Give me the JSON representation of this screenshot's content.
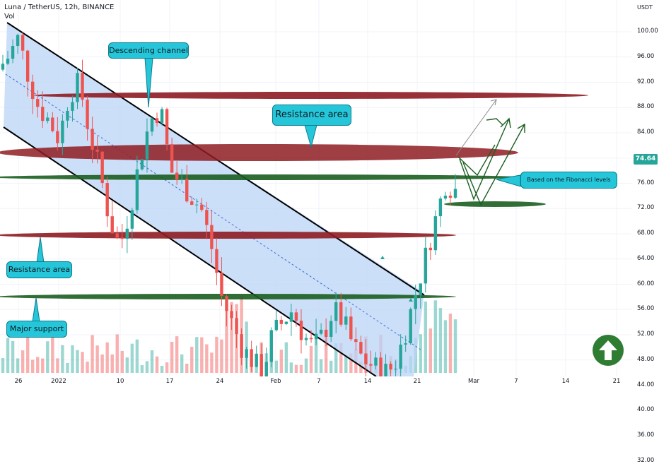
{
  "header": {
    "title": "Luna / TetherUS, 12h, BINANCE",
    "vol_label": "Vol",
    "currency": "USDT"
  },
  "price_axis": {
    "ticks": [
      "100.00",
      "96.00",
      "92.00",
      "88.00",
      "84.00",
      "80.00",
      "76.00",
      "72.00",
      "68.00",
      "64.00",
      "60.00",
      "56.00",
      "52.00",
      "48.00",
      "44.00",
      "40.00",
      "36.00",
      "32.00"
    ],
    "current": "74.64",
    "current_color": "#26a69a"
  },
  "time_axis": {
    "labels": [
      "26",
      "2022",
      "10",
      "17",
      "24",
      "Feb",
      "7",
      "14",
      "21",
      "Mar",
      "7",
      "14",
      "21"
    ]
  },
  "annotations": {
    "descending_channel": "Descending channel",
    "resistance_area_top": "Resistance area",
    "resistance_area_left": "Resistance area",
    "major_support": "Major support",
    "fib_note": "Based on the Fibonacci levels"
  },
  "colors": {
    "up": "#26a69a",
    "down": "#ef5350",
    "resistance": "#8e1c22",
    "support": "#1b5e20",
    "channel_fill": "#bbd4f7",
    "callout": "#26c6da"
  },
  "chart_data": {
    "type": "candlestick",
    "title": "Luna / TetherUS, 12h, BINANCE",
    "ylim": [
      32,
      102
    ],
    "x": [
      "Dec 26",
      "2022",
      "Jan 10",
      "Jan 17",
      "Jan 24",
      "Feb",
      "Feb 7",
      "Feb 14",
      "Feb 21"
    ],
    "price_path": [
      94,
      96,
      99,
      93,
      88,
      86,
      83,
      90,
      92,
      84,
      78,
      70,
      66,
      72,
      80,
      86,
      88,
      78,
      76,
      74,
      72,
      66,
      58,
      54,
      50,
      48,
      46,
      52,
      54,
      56,
      52,
      50,
      52,
      56,
      54,
      50,
      48,
      47,
      46,
      47,
      52,
      58,
      64,
      70,
      76,
      75
    ],
    "levels": {
      "resistance": [
        75,
        87,
        59
      ],
      "support": [
        71,
        65,
        47
      ]
    },
    "current_price": 74.64
  }
}
